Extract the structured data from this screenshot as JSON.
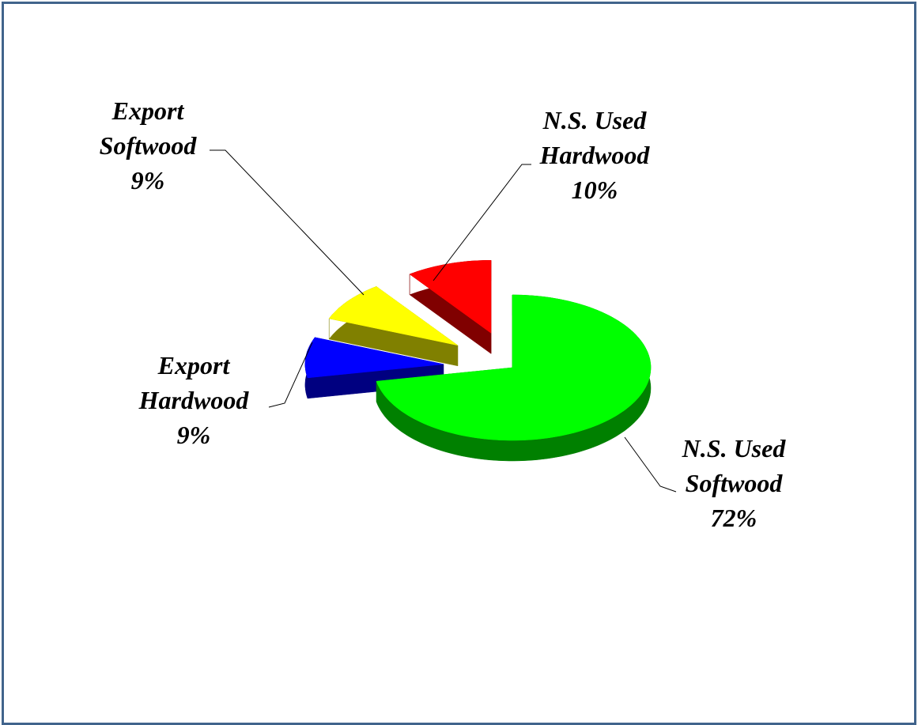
{
  "chart_data": {
    "type": "pie3d",
    "categories": [
      "N.S. Used Softwood",
      "Export Hardwood",
      "Export Softwood",
      "N.S. Used Hardwood"
    ],
    "values": [
      72,
      9,
      9,
      10
    ],
    "value_labels": [
      "72%",
      "9%",
      "9%",
      "10%"
    ],
    "colors": [
      "#00ff00",
      "#0000ff",
      "#ffff00",
      "#ff0000"
    ],
    "side_colors": [
      "#008000",
      "#000080",
      "#808000",
      "#800000"
    ]
  }
}
